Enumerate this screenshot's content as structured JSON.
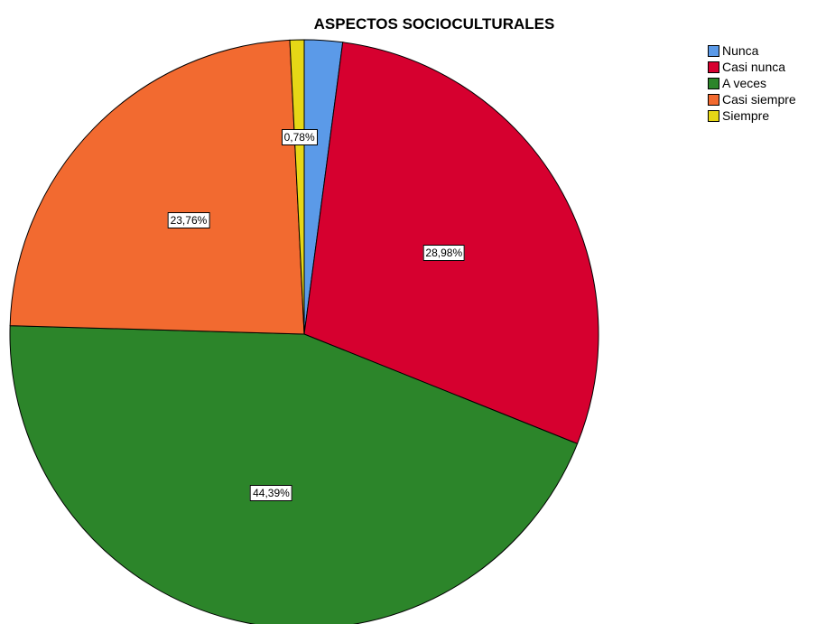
{
  "chart_data": {
    "type": "pie",
    "title": "ASPECTOS SOCIOCULTURALES",
    "categories": [
      "Nunca",
      "Casi nunca",
      "A veces",
      "Casi siempre",
      "Siempre"
    ],
    "values": [
      2.09,
      28.98,
      44.39,
      23.76,
      0.78
    ],
    "value_labels": [
      "",
      "28,98%",
      "44,39%",
      "23,76%",
      "0,78%"
    ],
    "colors": [
      "#5b9ae8",
      "#d6002f",
      "#2c852a",
      "#f26a30",
      "#e6d716"
    ],
    "start_angle_deg": 0,
    "direction": "clockwise",
    "legend_position": "top-right"
  }
}
